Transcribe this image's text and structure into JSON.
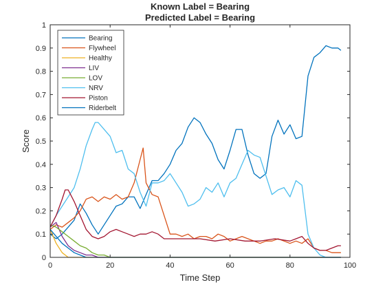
{
  "chart_data": {
    "type": "line",
    "title": "Known Label = Bearing",
    "subtitle": "Predicted Label = Bearing",
    "xlabel": "Time Step",
    "ylabel": "Score",
    "xlim": [
      0,
      100
    ],
    "ylim": [
      0,
      1
    ],
    "xticks": [
      "0",
      "20",
      "40",
      "60",
      "80",
      "100"
    ],
    "yticks": [
      "0",
      "0.1",
      "0.2",
      "0.3",
      "0.4",
      "0.5",
      "0.6",
      "0.7",
      "0.8",
      "0.9",
      "1"
    ],
    "grid": false,
    "legend_position": "top-left",
    "series": [
      {
        "name": "Bearing",
        "color": "#0072BD",
        "x": [
          0,
          2,
          4,
          6,
          8,
          10,
          12,
          14,
          16,
          18,
          20,
          22,
          24,
          26,
          28,
          30,
          32,
          34,
          36,
          38,
          40,
          42,
          44,
          46,
          48,
          50,
          52,
          54,
          56,
          58,
          60,
          62,
          64,
          66,
          68,
          70,
          72,
          74,
          76,
          78,
          80,
          82,
          84,
          86,
          88,
          90,
          92,
          94,
          96,
          97
        ],
        "y": [
          0.1,
          0.08,
          0.1,
          0.13,
          0.16,
          0.23,
          0.19,
          0.14,
          0.1,
          0.14,
          0.18,
          0.22,
          0.23,
          0.26,
          0.26,
          0.21,
          0.27,
          0.33,
          0.33,
          0.36,
          0.4,
          0.46,
          0.49,
          0.56,
          0.6,
          0.58,
          0.53,
          0.49,
          0.42,
          0.38,
          0.46,
          0.55,
          0.55,
          0.44,
          0.36,
          0.34,
          0.36,
          0.52,
          0.59,
          0.53,
          0.57,
          0.51,
          0.52,
          0.78,
          0.86,
          0.88,
          0.91,
          0.9,
          0.9,
          0.89
        ]
      },
      {
        "name": "Flywheel",
        "color": "#D95319",
        "x": [
          0,
          2,
          4,
          6,
          8,
          10,
          12,
          14,
          16,
          18,
          20,
          22,
          24,
          26,
          28,
          30,
          31,
          32,
          34,
          36,
          38,
          40,
          42,
          44,
          46,
          48,
          50,
          52,
          54,
          56,
          58,
          60,
          62,
          64,
          66,
          68,
          70,
          72,
          74,
          76,
          78,
          80,
          82,
          84,
          86,
          88,
          90,
          92,
          94,
          96,
          97
        ],
        "y": [
          0.12,
          0.14,
          0.13,
          0.15,
          0.17,
          0.2,
          0.25,
          0.26,
          0.24,
          0.26,
          0.25,
          0.27,
          0.25,
          0.26,
          0.32,
          0.42,
          0.47,
          0.32,
          0.27,
          0.26,
          0.18,
          0.1,
          0.1,
          0.09,
          0.1,
          0.08,
          0.09,
          0.09,
          0.08,
          0.1,
          0.09,
          0.07,
          0.08,
          0.09,
          0.08,
          0.07,
          0.06,
          0.07,
          0.07,
          0.08,
          0.07,
          0.06,
          0.07,
          0.06,
          0.08,
          0.04,
          0.03,
          0.03,
          0.02,
          0.02,
          0.02
        ]
      },
      {
        "name": "Healthy",
        "color": "#EDB120",
        "x": [
          0,
          2,
          4,
          6,
          8,
          10,
          15,
          20,
          40,
          60,
          80,
          97
        ],
        "y": [
          0.12,
          0.06,
          0.02,
          0.0,
          0.0,
          0.0,
          0.0,
          0.0,
          0.0,
          0.0,
          0.0,
          0.0
        ]
      },
      {
        "name": "LIV",
        "color": "#7E2F8E",
        "x": [
          0,
          2,
          4,
          6,
          8,
          10,
          12,
          14,
          16,
          18,
          20,
          25,
          30,
          40,
          60,
          80,
          97
        ],
        "y": [
          0.13,
          0.15,
          0.09,
          0.05,
          0.03,
          0.02,
          0.01,
          0.01,
          0.0,
          0.0,
          0.0,
          0.0,
          0.0,
          0.0,
          0.0,
          0.0,
          0.0
        ]
      },
      {
        "name": "LOV",
        "color": "#77AC30",
        "x": [
          0,
          2,
          4,
          6,
          8,
          10,
          12,
          14,
          16,
          18,
          20,
          22,
          25,
          30,
          40,
          60,
          80,
          97
        ],
        "y": [
          0.14,
          0.13,
          0.11,
          0.09,
          0.07,
          0.05,
          0.04,
          0.02,
          0.01,
          0.01,
          0.0,
          0.0,
          0.0,
          0.0,
          0.0,
          0.0,
          0.0,
          0.0
        ]
      },
      {
        "name": "NRV",
        "color": "#4DBEEE",
        "x": [
          0,
          2,
          4,
          6,
          8,
          10,
          12,
          14,
          15,
          16,
          18,
          20,
          22,
          24,
          26,
          28,
          30,
          32,
          34,
          36,
          38,
          40,
          42,
          44,
          46,
          48,
          50,
          52,
          54,
          56,
          58,
          60,
          62,
          64,
          66,
          68,
          70,
          72,
          74,
          76,
          78,
          80,
          82,
          84,
          86,
          88,
          90,
          92,
          94,
          96,
          97
        ],
        "y": [
          0.13,
          0.18,
          0.22,
          0.26,
          0.3,
          0.38,
          0.48,
          0.55,
          0.58,
          0.58,
          0.55,
          0.52,
          0.45,
          0.46,
          0.38,
          0.36,
          0.28,
          0.22,
          0.32,
          0.32,
          0.33,
          0.36,
          0.32,
          0.28,
          0.22,
          0.23,
          0.25,
          0.3,
          0.28,
          0.32,
          0.26,
          0.32,
          0.34,
          0.4,
          0.46,
          0.44,
          0.43,
          0.35,
          0.27,
          0.29,
          0.3,
          0.26,
          0.33,
          0.31,
          0.1,
          0.04,
          0.01,
          0.0,
          0.0,
          0.0,
          0.0
        ]
      },
      {
        "name": "Piston",
        "color": "#A2142F",
        "x": [
          0,
          2,
          4,
          5,
          6,
          8,
          10,
          12,
          14,
          16,
          18,
          20,
          22,
          24,
          26,
          28,
          30,
          32,
          34,
          36,
          38,
          40,
          45,
          50,
          55,
          60,
          65,
          70,
          75,
          80,
          82,
          84,
          86,
          88,
          90,
          92,
          94,
          96,
          97
        ],
        "y": [
          0.13,
          0.18,
          0.25,
          0.29,
          0.29,
          0.24,
          0.18,
          0.12,
          0.09,
          0.08,
          0.09,
          0.11,
          0.12,
          0.11,
          0.1,
          0.09,
          0.1,
          0.1,
          0.11,
          0.1,
          0.08,
          0.08,
          0.08,
          0.08,
          0.07,
          0.08,
          0.07,
          0.07,
          0.08,
          0.07,
          0.08,
          0.09,
          0.06,
          0.04,
          0.03,
          0.03,
          0.04,
          0.05,
          0.05
        ]
      },
      {
        "name": "Riderbelt",
        "color": "#0072BD",
        "x": [
          0,
          2,
          4,
          6,
          8,
          10,
          12,
          14,
          20,
          30,
          40,
          60,
          80,
          97
        ],
        "y": [
          0.12,
          0.09,
          0.06,
          0.04,
          0.02,
          0.01,
          0.0,
          0.0,
          0.0,
          0.0,
          0.0,
          0.0,
          0.0,
          0.0
        ]
      }
    ]
  }
}
